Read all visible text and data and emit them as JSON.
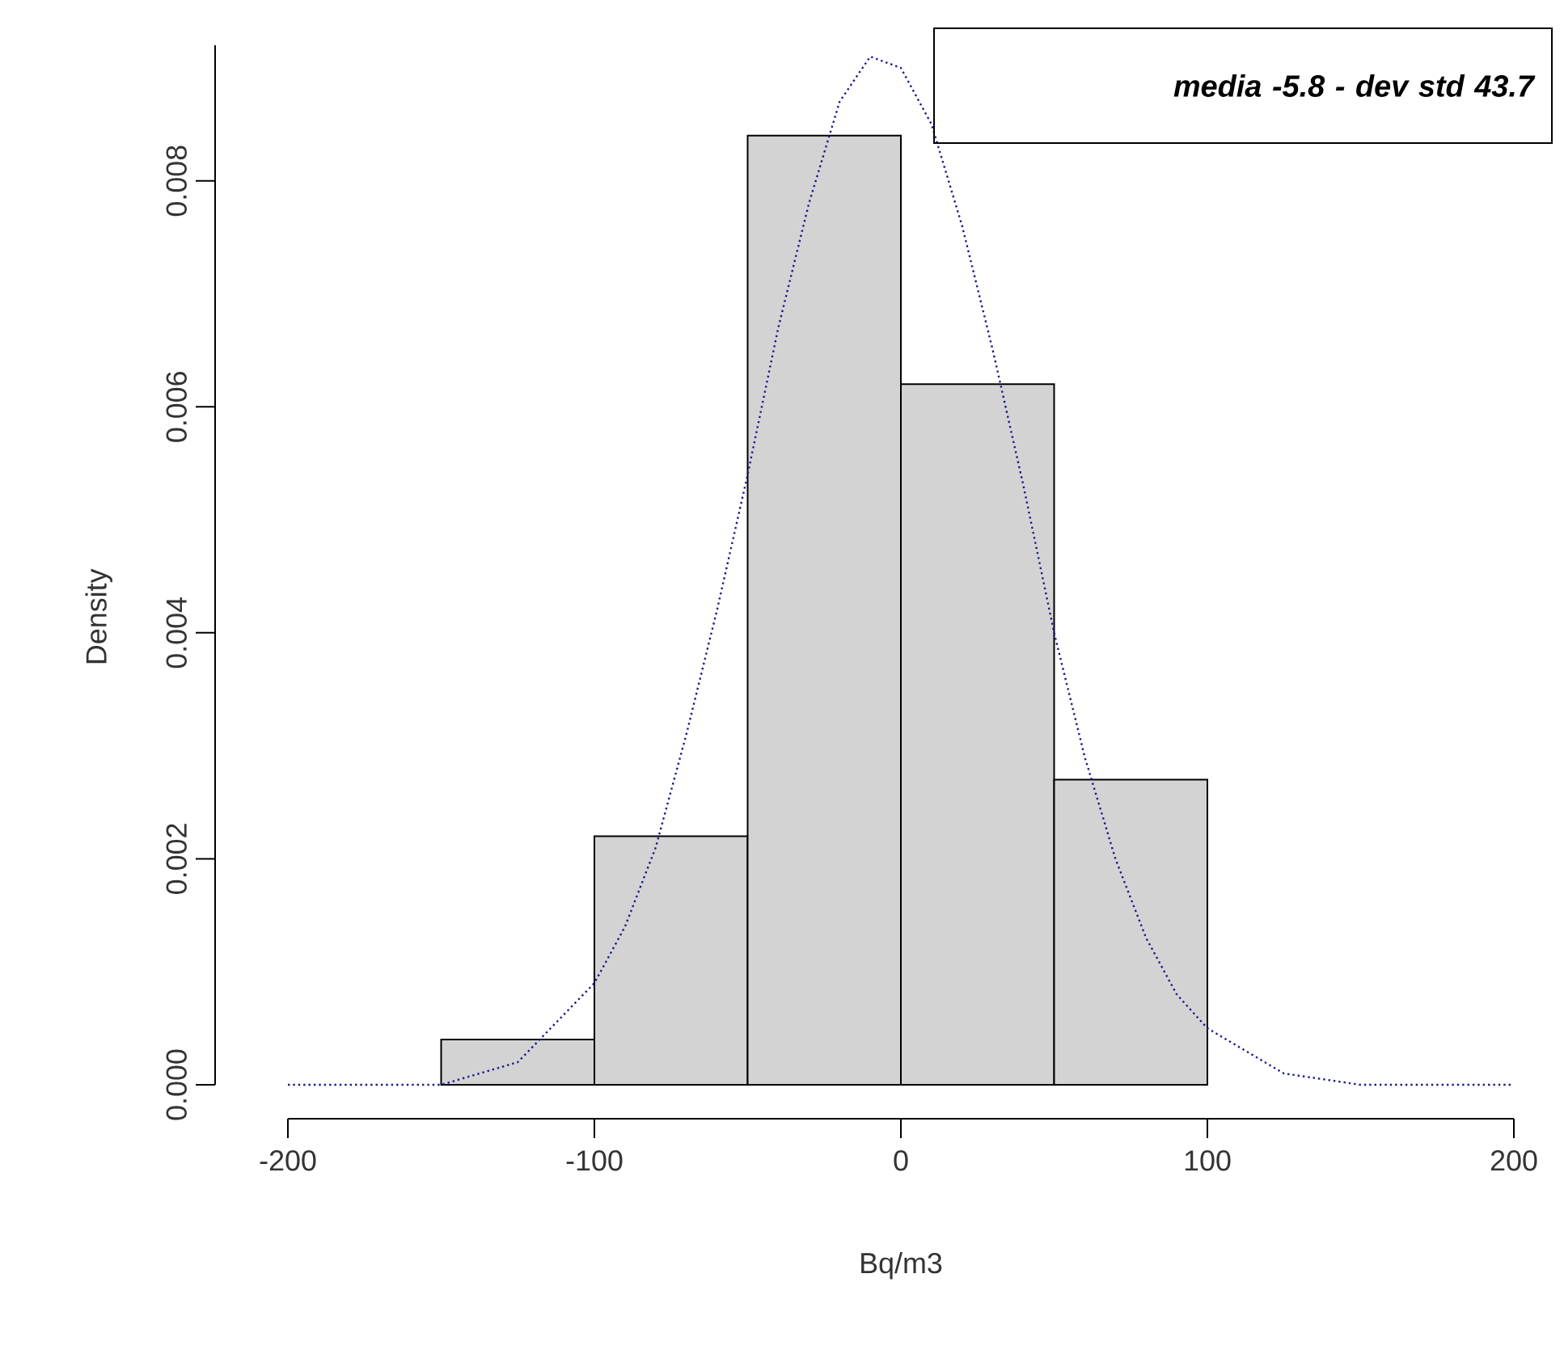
{
  "chart_data": {
    "type": "histogram",
    "xlabel": "Bq/m3",
    "ylabel": "Density",
    "annotations": [
      "media -5.8 - dev std 43.7"
    ],
    "bins": [
      -150,
      -100,
      -50,
      0,
      50,
      100
    ],
    "values": [
      0.0004,
      0.0022,
      0.0084,
      0.0062,
      0.0027
    ],
    "color": "#d3d3d3",
    "series": [
      {
        "type": "line",
        "color": "#1a1a8c",
        "line_style": "dotted",
        "x": [
          -200,
          -175,
          -150,
          -125,
          -100,
          -90,
          -80,
          -70,
          -60,
          -50,
          -40,
          -30,
          -20,
          -10,
          0,
          10,
          20,
          30,
          40,
          50,
          60,
          70,
          80,
          90,
          100,
          125,
          150,
          175,
          200
        ],
        "values": [
          0,
          0,
          0,
          0.0002,
          0.0009,
          0.0014,
          0.0021,
          0.0031,
          0.0042,
          0.0054,
          0.0067,
          0.0078,
          0.0087,
          0.0091,
          0.009,
          0.0085,
          0.0076,
          0.0065,
          0.0053,
          0.004,
          0.0029,
          0.002,
          0.0013,
          0.0008,
          0.0005,
          0.0001,
          0,
          0,
          0
        ]
      }
    ],
    "xlim": [
      -200,
      200
    ],
    "ylim": [
      0,
      0.0092
    ],
    "xticks": [
      -200,
      -100,
      0,
      100,
      200
    ],
    "yticks": [
      {
        "value": 0,
        "label": "0.000"
      },
      {
        "value": 0.002,
        "label": "0.002"
      },
      {
        "value": 0.004,
        "label": "0.004"
      },
      {
        "value": 0.006,
        "label": "0.006"
      },
      {
        "value": 0.008,
        "label": "0.008"
      }
    ]
  }
}
